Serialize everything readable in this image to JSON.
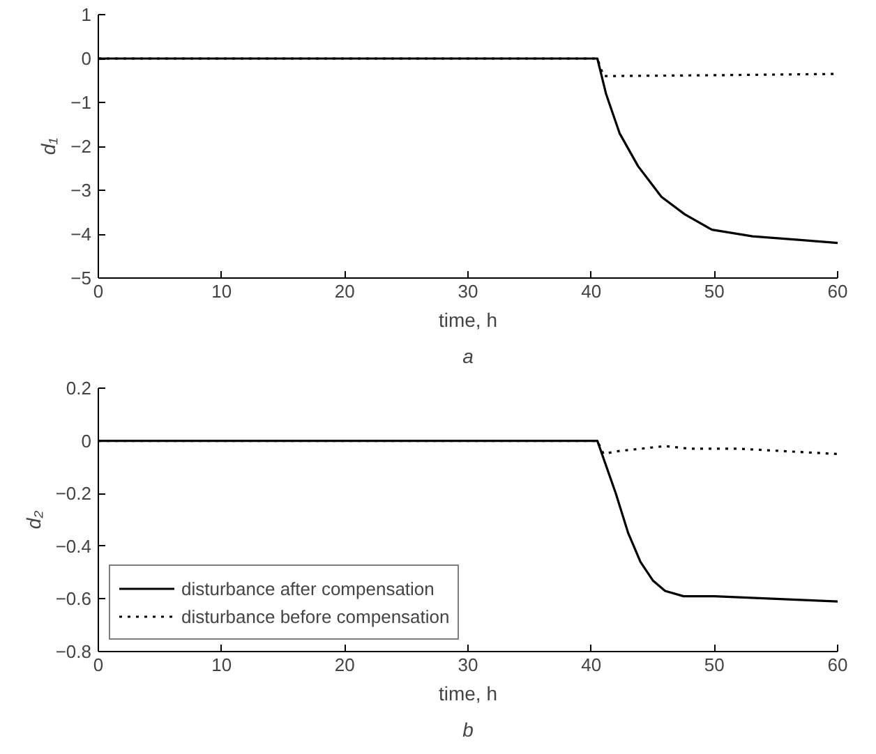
{
  "chart_data": [
    {
      "type": "line",
      "xlabel": "time, h",
      "ylabel": "d₁",
      "annotations": [
        "a"
      ],
      "xlim": [
        0,
        60
      ],
      "ylim": [
        -5,
        1
      ],
      "xticks": [
        0,
        10,
        20,
        30,
        40,
        50,
        60
      ],
      "yticks": [
        -5,
        -4,
        -3,
        -2,
        -1,
        0,
        1
      ],
      "grid": false,
      "legend": false,
      "series": [
        {
          "color": "#000000",
          "line_style": "solid",
          "x": [
            0,
            40.5,
            41.2,
            42.3,
            43.8,
            45.7,
            47.6,
            49.8,
            53.1,
            56.8,
            60
          ],
          "values": [
            0,
            0,
            -0.8,
            -1.7,
            -2.45,
            -3.15,
            -3.55,
            -3.9,
            -4.05,
            -4.13,
            -4.2
          ]
        },
        {
          "color": "#000000",
          "line_style": "dotted",
          "x": [
            0,
            40.5,
            41,
            50,
            60
          ],
          "values": [
            0,
            0,
            -0.4,
            -0.38,
            -0.35
          ]
        }
      ]
    },
    {
      "type": "line",
      "xlabel": "time, h",
      "ylabel": "d₂",
      "annotations": [
        "b"
      ],
      "xlim": [
        0,
        60
      ],
      "ylim": [
        -0.8,
        0.2
      ],
      "xticks": [
        0,
        10,
        20,
        30,
        40,
        50,
        60
      ],
      "yticks": [
        -0.8,
        -0.6,
        -0.4,
        -0.2,
        0,
        0.2
      ],
      "grid": false,
      "legend": "bottom left",
      "series": [
        {
          "name": "disturbance after compensation",
          "color": "#000000",
          "line_style": "solid",
          "x": [
            0,
            40.5,
            42,
            43,
            44,
            45,
            46,
            47.5,
            50,
            55,
            60
          ],
          "values": [
            0,
            0,
            -0.2,
            -0.35,
            -0.46,
            -0.53,
            -0.57,
            -0.59,
            -0.59,
            -0.6,
            -0.61
          ]
        },
        {
          "name": "disturbance before compensation",
          "color": "#000000",
          "line_style": "dotted",
          "x": [
            0,
            40.5,
            41,
            42,
            44,
            46,
            48,
            52,
            56,
            60
          ],
          "values": [
            0,
            0,
            -0.05,
            -0.04,
            -0.03,
            -0.02,
            -0.03,
            -0.03,
            -0.04,
            -0.05
          ]
        }
      ]
    }
  ]
}
